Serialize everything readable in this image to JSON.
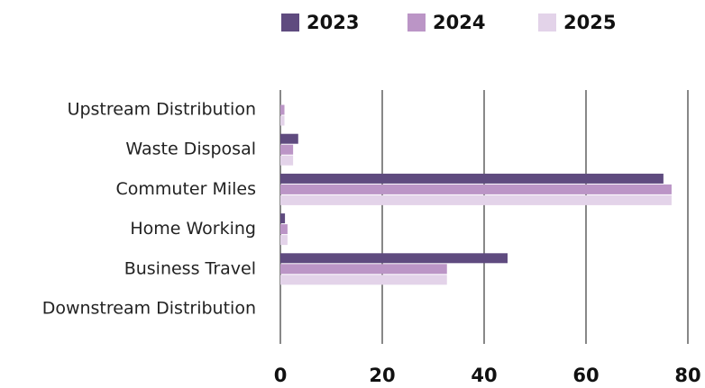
{
  "chart_data": {
    "type": "bar",
    "orientation": "horizontal",
    "categories": [
      "Upstream Distribution",
      "Waste Disposal",
      "Commuter Miles",
      "Home Working",
      "Business Travel",
      "Downstream Distribution"
    ],
    "series": [
      {
        "name": "2023",
        "color": "#5f4b7f",
        "values": [
          0,
          3.5,
          75.2,
          0.9,
          44.6,
          0
        ]
      },
      {
        "name": "2024",
        "color": "#bb95c6",
        "values": [
          0.8,
          2.5,
          76.8,
          1.4,
          32.7,
          0
        ]
      },
      {
        "name": "2025",
        "color": "#e3d3e9",
        "values": [
          0.8,
          2.5,
          76.8,
          1.4,
          32.7,
          0
        ]
      }
    ],
    "xlim": [
      0,
      80
    ],
    "xticks": [
      0,
      20,
      40,
      60,
      80
    ],
    "grid": true,
    "legend": "top"
  }
}
